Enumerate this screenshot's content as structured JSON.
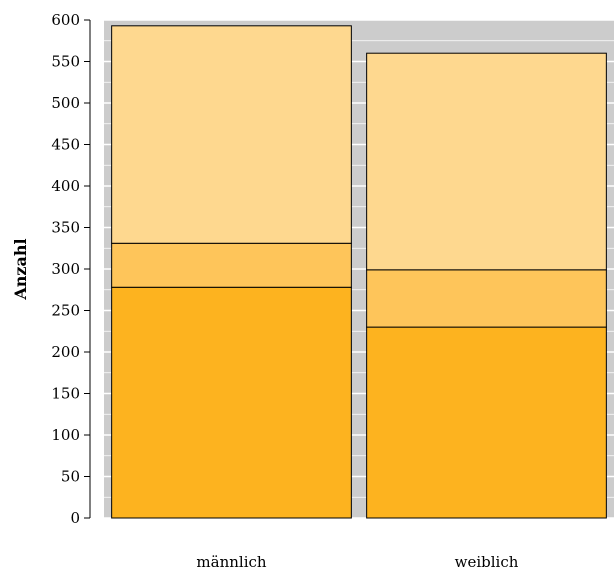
{
  "chart_data": {
    "type": "bar",
    "stacked": true,
    "title": "",
    "xlabel": "",
    "ylabel": "Anzahl",
    "ylim": [
      0,
      600
    ],
    "yticks": [
      0,
      50,
      100,
      150,
      200,
      250,
      300,
      350,
      400,
      450,
      500,
      550,
      600
    ],
    "grid": true,
    "categories": [
      "männlich",
      "weiblich"
    ],
    "series": [
      {
        "values": [
          278,
          230
        ],
        "color": "#fdb31f"
      },
      {
        "values": [
          53,
          69
        ],
        "color": "#fec55a"
      },
      {
        "values": [
          262,
          261
        ],
        "color": "#fed88f"
      }
    ],
    "colors": {
      "panel_background": "#cccccc",
      "grid": "#ffffff",
      "bar_edge": "#000000"
    }
  }
}
